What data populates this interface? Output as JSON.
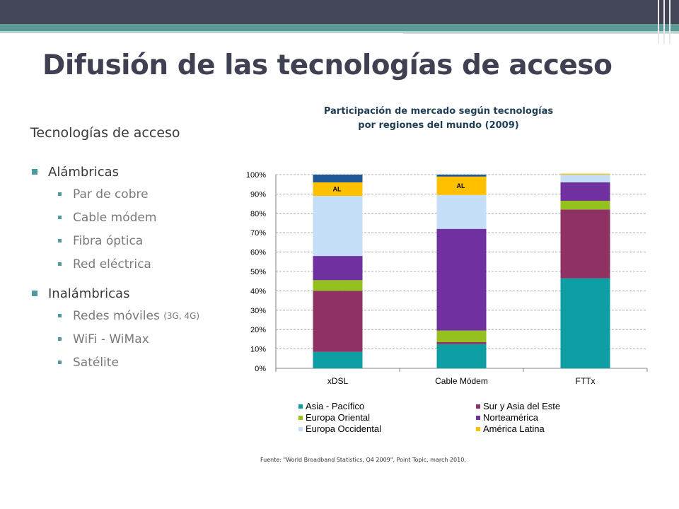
{
  "slide": {
    "title": "Difusión de las tecnologías de acceso",
    "subtitle": "Tecnologías de acceso",
    "source": "Fuente: \"World Broadband Statistics, Q4 2009\", Point Topic, march 2010."
  },
  "list": [
    {
      "label": "Alámbricas",
      "items": [
        "Par de cobre",
        "Cable módem",
        "Fibra óptica",
        "Red eléctrica"
      ]
    },
    {
      "label": "Inalámbricas",
      "items": [
        "Redes móviles",
        "WiFi - WiMax",
        "Satélite"
      ],
      "note": "(3G, 4G)"
    }
  ],
  "chart_data": {
    "type": "bar",
    "stacked": true,
    "title": "Participación de mercado según tecnologías por regiones del mundo (2009)",
    "title_lines": [
      "Participación de mercado según tecnologías",
      "por regiones del mundo (2009)"
    ],
    "categories": [
      "xDSL",
      "Cable Módem",
      "FTTx"
    ],
    "ylim": [
      0,
      100
    ],
    "yticks": [
      "0%",
      "10%",
      "20%",
      "30%",
      "40%",
      "50%",
      "60%",
      "70%",
      "80%",
      "90%",
      "100%"
    ],
    "grid": true,
    "legend_position": "bottom",
    "series": [
      {
        "name": "Asia - Pacífico",
        "color": "#0d9ea4",
        "values": [
          8.5,
          12.5,
          46.5
        ]
      },
      {
        "name": "Sur y Asia del Este",
        "color": "#8f3163",
        "values": [
          31.5,
          1.0,
          35.5
        ]
      },
      {
        "name": "Europa Oriental",
        "color": "#95c11f",
        "values": [
          5.5,
          6.0,
          4.5
        ]
      },
      {
        "name": "Norteamérica",
        "color": "#7030a0",
        "values": [
          12.5,
          52.5,
          9.5
        ]
      },
      {
        "name": "Europa Occidental",
        "color": "#c5dff8",
        "values": [
          31.0,
          17.5,
          4.0
        ]
      },
      {
        "name": "América Latina",
        "color": "#ffc000",
        "values": [
          7.0,
          9.5,
          0.5
        ]
      },
      {
        "name": "",
        "color": "#1f5895",
        "values": [
          4.0,
          1.0,
          0.0
        ]
      }
    ],
    "annotations": [
      {
        "category": "xDSL",
        "series": "América Latina",
        "text": "AL"
      },
      {
        "category": "Cable Módem",
        "series": "América Latina",
        "text": "AL"
      }
    ]
  }
}
